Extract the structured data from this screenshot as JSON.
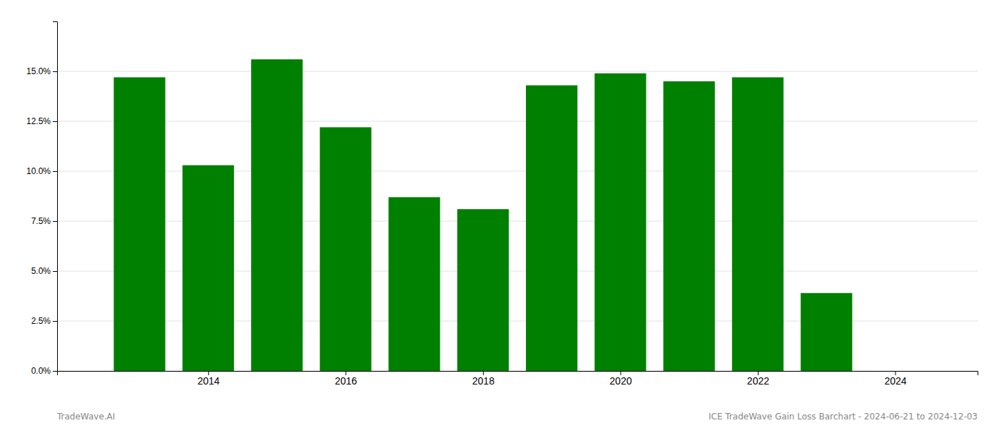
{
  "chart_data": {
    "type": "bar",
    "x": [
      2013,
      2014,
      2015,
      2016,
      2017,
      2018,
      2019,
      2020,
      2021,
      2022,
      2023
    ],
    "values": [
      0.147,
      0.103,
      0.156,
      0.122,
      0.087,
      0.081,
      0.143,
      0.149,
      0.145,
      0.147,
      0.039
    ],
    "color": "#008000",
    "xlim": [
      2011.8,
      2025.2
    ],
    "xticks": [
      2014,
      2016,
      2018,
      2020,
      2022,
      2024
    ],
    "ylim": [
      0,
      0.175
    ],
    "yticks": [
      {
        "value": 0.0,
        "label": "0.0%"
      },
      {
        "value": 0.025,
        "label": "2.5%"
      },
      {
        "value": 0.05,
        "label": "5.0%"
      },
      {
        "value": 0.075,
        "label": "7.5%"
      },
      {
        "value": 0.1,
        "label": "10.0%"
      },
      {
        "value": 0.125,
        "label": "12.5%"
      },
      {
        "value": 0.15,
        "label": "15.0%"
      }
    ],
    "grid": true,
    "annotations": [
      "TradeWave.AI",
      "ICE TradeWave Gain Loss Barchart - 2024-06-21 to 2024-12-03"
    ]
  }
}
